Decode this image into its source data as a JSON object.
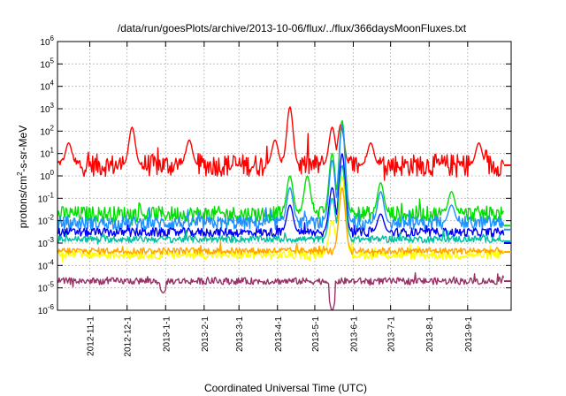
{
  "chart_data": {
    "type": "line",
    "title": "/data/run/goesPlots/archive/2013-10-06/flux/../flux/366daysMoonFluxes.txt",
    "xlabel": "Coordinated Universal Time (UTC)",
    "ylabel": "protons/cm2-s-sr-MeV",
    "yscale": "log",
    "ylim": [
      1e-06,
      1000000.0
    ],
    "xlim": [
      "2012-10-06",
      "2013-10-06"
    ],
    "grid": true,
    "y_ticks": [
      {
        "base": "10",
        "exp": "-6",
        "value": 1e-06
      },
      {
        "base": "10",
        "exp": "-5",
        "value": 1e-05
      },
      {
        "base": "10",
        "exp": "-4",
        "value": 0.0001
      },
      {
        "base": "10",
        "exp": "-3",
        "value": 0.001
      },
      {
        "base": "10",
        "exp": "-2",
        "value": 0.01
      },
      {
        "base": "10",
        "exp": "-1",
        "value": 0.1
      },
      {
        "base": "10",
        "exp": "0",
        "value": 1
      },
      {
        "base": "10",
        "exp": "1",
        "value": 10
      },
      {
        "base": "10",
        "exp": "2",
        "value": 100
      },
      {
        "base": "10",
        "exp": "3",
        "value": 1000
      },
      {
        "base": "10",
        "exp": "4",
        "value": 10000
      },
      {
        "base": "10",
        "exp": "5",
        "value": 100000
      },
      {
        "base": "10",
        "exp": "6",
        "value": 1000000
      }
    ],
    "x_ticks": [
      "2012-11-1",
      "2012-12-1",
      "2013-1-1",
      "2013-2-1",
      "2013-3-1",
      "2013-4-1",
      "2013-5-1",
      "2013-6-1",
      "2013-7-1",
      "2013-8-1",
      "2013-9-1"
    ],
    "series": [
      {
        "color": "#ff0000",
        "baseline": 3,
        "spread": 0.5,
        "final": 3,
        "spikes": [
          [
            "2012-10-15",
            30
          ],
          [
            "2012-12-05",
            150
          ],
          [
            "2013-01-20",
            40
          ],
          [
            "2013-03-30",
            40
          ],
          [
            "2013-04-11",
            1200
          ],
          [
            "2013-05-15",
            150
          ],
          [
            "2013-05-22",
            200
          ],
          [
            "2013-06-15",
            30
          ],
          [
            "2013-09-10",
            30
          ]
        ]
      },
      {
        "color": "#00e000",
        "baseline": 0.02,
        "spread": 0.35,
        "final": 0.006,
        "spikes": [
          [
            "2013-04-11",
            1
          ],
          [
            "2013-04-25",
            1
          ],
          [
            "2013-05-15",
            10
          ],
          [
            "2013-05-23",
            300
          ],
          [
            "2013-06-23",
            0.5
          ],
          [
            "2013-08-19",
            0.2
          ]
        ]
      },
      {
        "color": "#1e90ff",
        "baseline": 0.008,
        "spread": 0.3,
        "final": 0.004,
        "spikes": [
          [
            "2013-04-11",
            0.3
          ],
          [
            "2013-05-15",
            5
          ],
          [
            "2013-05-23",
            200
          ],
          [
            "2013-06-23",
            0.2
          ],
          [
            "2013-08-19",
            0.05
          ]
        ]
      },
      {
        "color": "#0000ff",
        "baseline": 0.003,
        "spread": 0.2,
        "final": 0.001,
        "spikes": [
          [
            "2013-04-11",
            0.05
          ],
          [
            "2013-05-15",
            0.3
          ],
          [
            "2013-05-23",
            10
          ],
          [
            "2013-06-23",
            0.02
          ]
        ]
      },
      {
        "color": "#00c0a0",
        "baseline": 0.0015,
        "spread": 0.15,
        "final": 0.0012,
        "spikes": [
          [
            "2013-05-15",
            0.1
          ],
          [
            "2013-05-23",
            3
          ]
        ]
      },
      {
        "color": "#ffff00",
        "baseline": 0.0003,
        "spread": 0.2,
        "final": 0.0004,
        "spikes": [
          [
            "2013-05-15",
            0.01
          ],
          [
            "2013-05-23",
            1
          ]
        ]
      },
      {
        "color": "#ffa500",
        "baseline": 0.00045,
        "spread": 0.15,
        "final": 0.0004,
        "spikes": [
          [
            "2013-05-23",
            0.3
          ]
        ]
      },
      {
        "color": "#993366",
        "baseline": 2e-05,
        "spread": 0.15,
        "final": 2e-05,
        "spikes": [
          [
            "2013-05-15",
            1e-06
          ],
          [
            "2012-12-30",
            6e-06
          ]
        ]
      }
    ]
  }
}
